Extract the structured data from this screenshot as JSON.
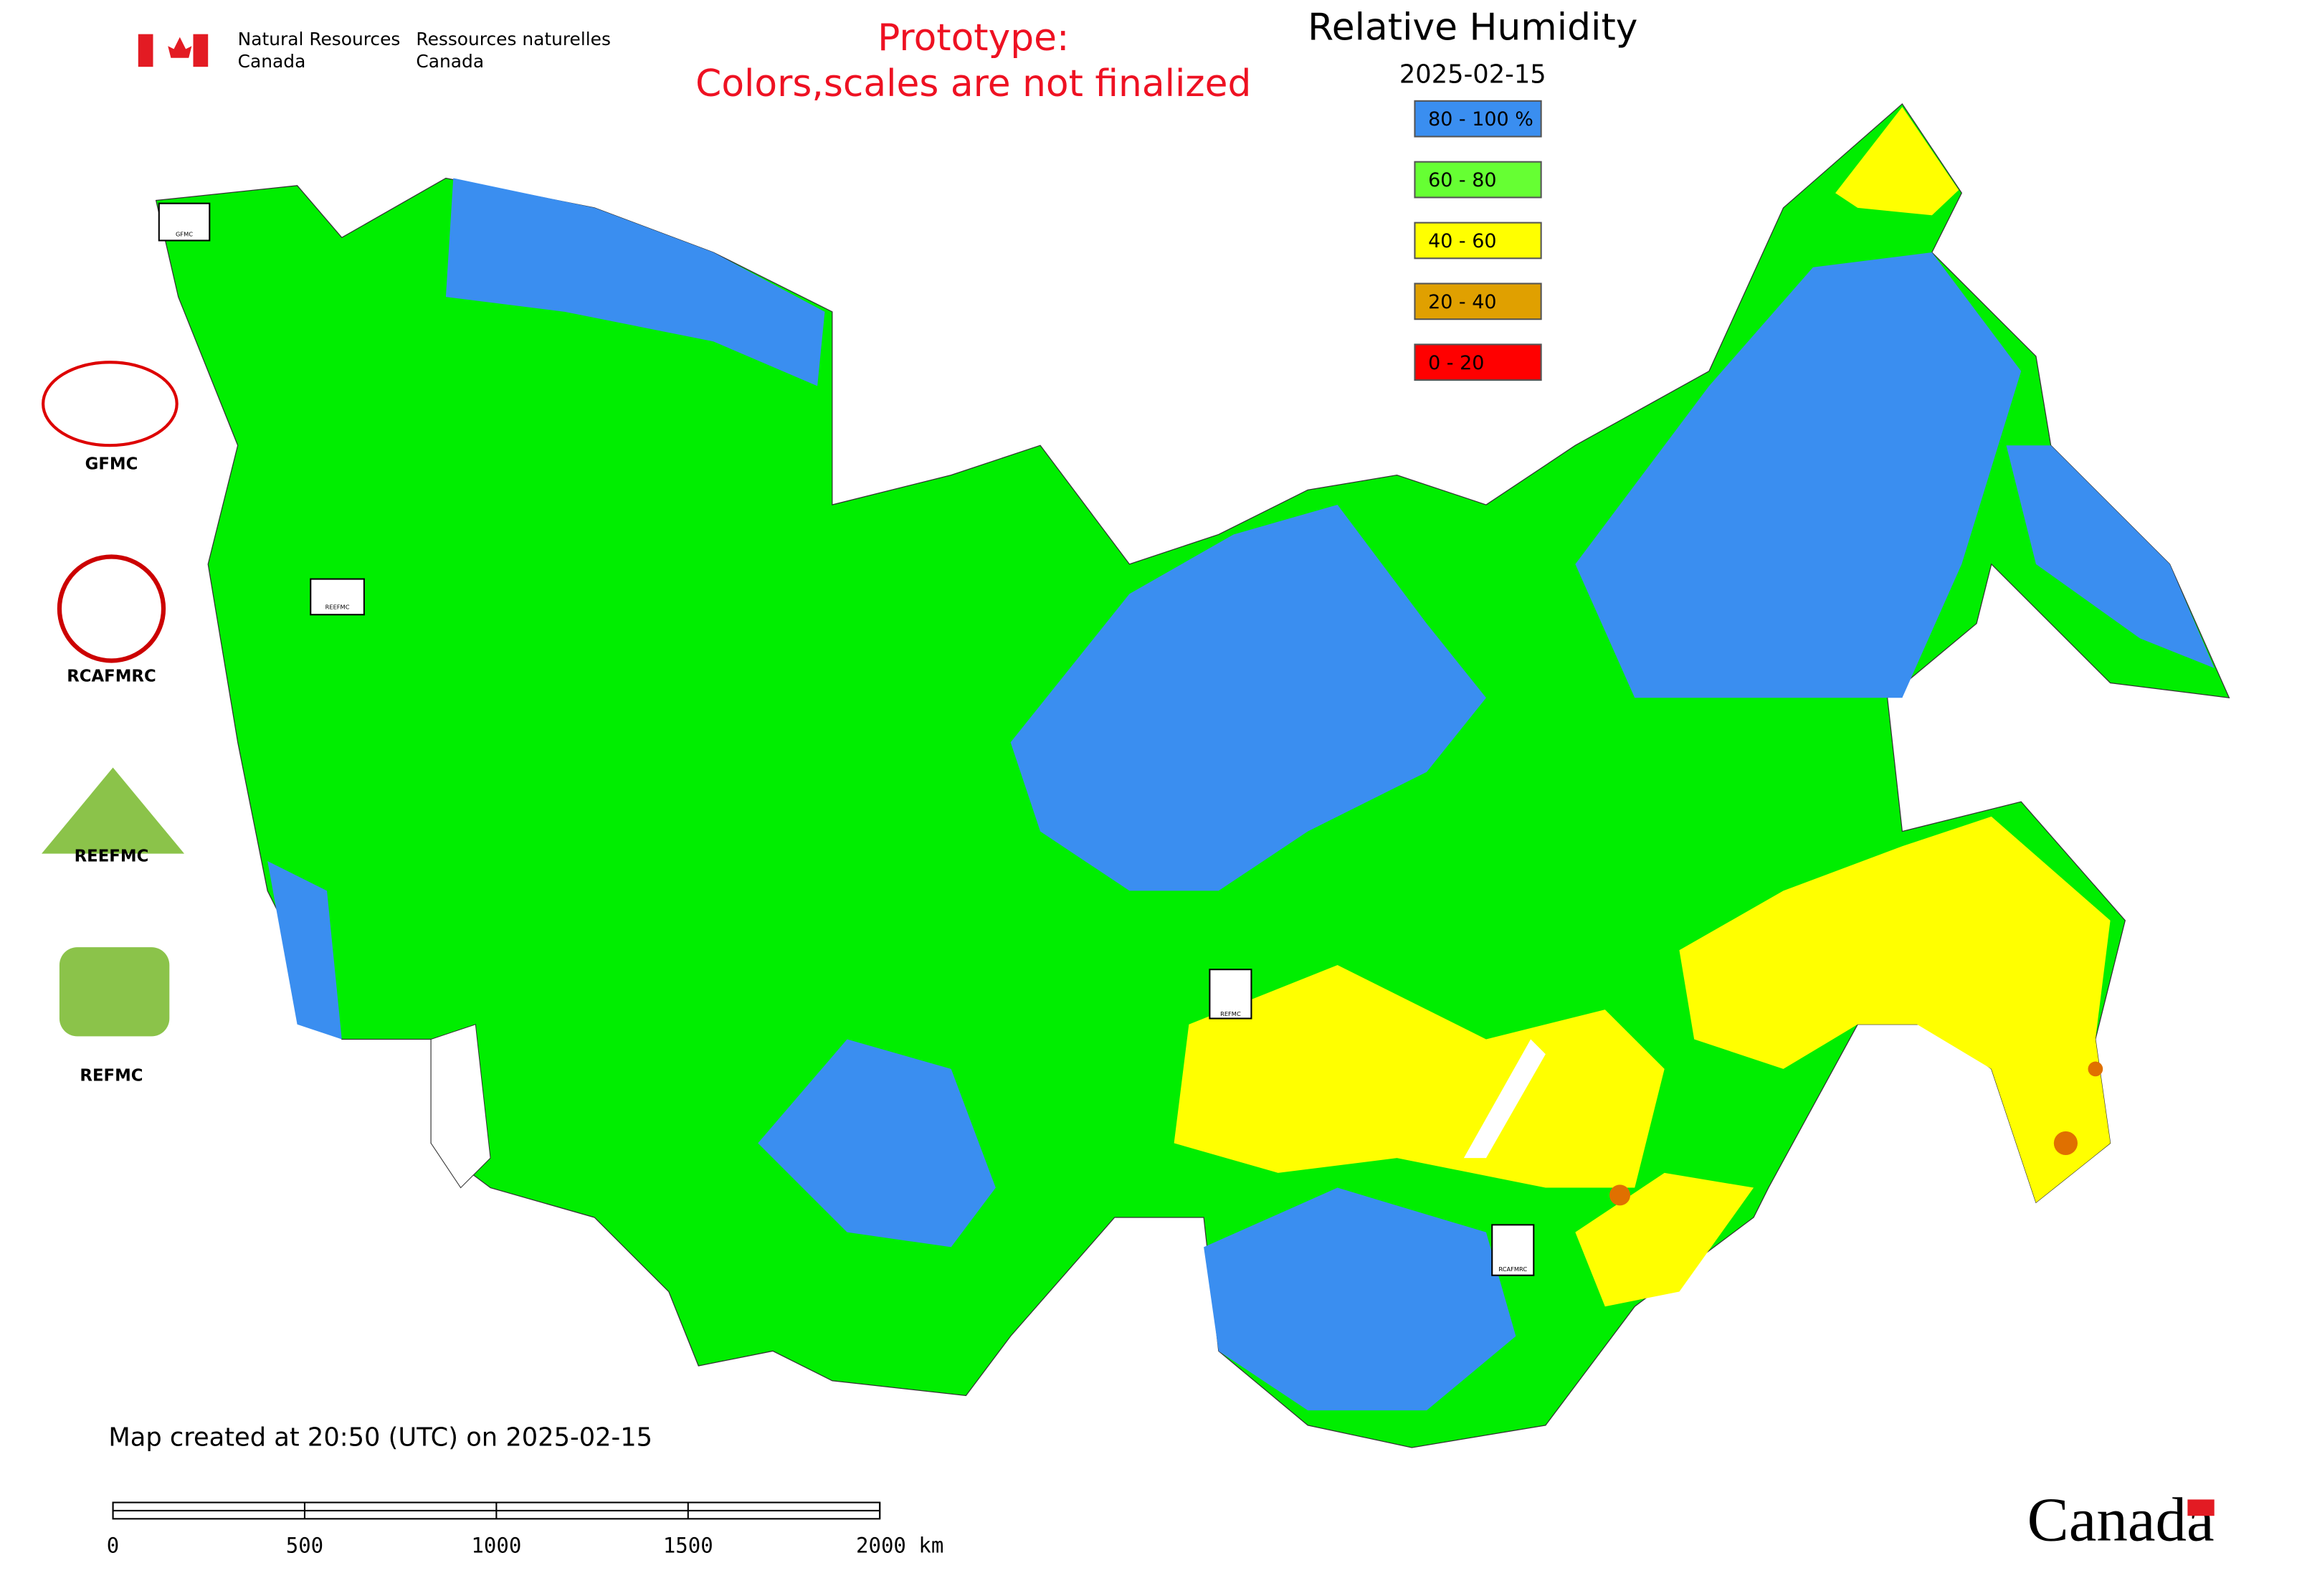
{
  "header": {
    "agency_en": [
      "Natural Resources",
      "Canada"
    ],
    "agency_fr": [
      "Ressources naturelles",
      "Canada"
    ],
    "prototype": [
      "Prototype:",
      "Colors,scales are not finalized"
    ]
  },
  "legend": {
    "title": "Relative Humidity",
    "date": "2025-02-15",
    "items": [
      {
        "label": "80 - 100 %",
        "color": "#3a8ef0"
      },
      {
        "label": "60 - 80",
        "color": "#66ff33"
      },
      {
        "label": "40 - 60",
        "color": "#ffff00"
      },
      {
        "label": "20 - 40",
        "color": "#e0a000"
      },
      {
        "label": "0 - 20",
        "color": "#ff0000"
      }
    ]
  },
  "logos": [
    "GFMC",
    "RCAFMRC",
    "REEFMC",
    "REFMC"
  ],
  "map_labels": [
    "GFMC",
    "REEFMC",
    "REFMC",
    "RCAFMRC"
  ],
  "footer": {
    "note": "Map created at 20:50 (UTC) on 2025-02-15",
    "scale_labels": [
      "0",
      "500",
      "1000",
      "1500",
      "2000 km"
    ],
    "wordmark": "Canada"
  }
}
